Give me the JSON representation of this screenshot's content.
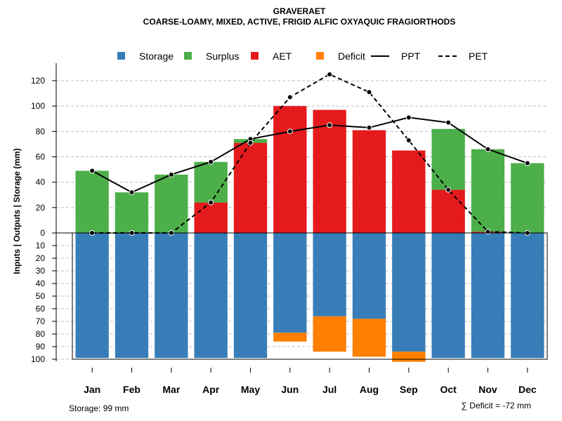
{
  "chart_data": {
    "type": "bar",
    "title": "GRAVERAET",
    "subtitle": "COARSE-LOAMY, MIXED, ACTIVE, FRIGID ALFIC OXYAQUIC FRAGIORTHODS",
    "ylabel": "Inputs | Outputs | Storage    (mm)",
    "categories": [
      "Jan",
      "Feb",
      "Mar",
      "Apr",
      "May",
      "Jun",
      "Jul",
      "Aug",
      "Sep",
      "Oct",
      "Nov",
      "Dec"
    ],
    "ylim_top": [
      0,
      130
    ],
    "yticks_top": [
      0,
      20,
      40,
      60,
      80,
      100,
      120
    ],
    "ylim_bottom": [
      0,
      100
    ],
    "yticks_bottom": [
      10,
      20,
      30,
      40,
      50,
      60,
      70,
      80,
      90,
      100
    ],
    "grid": true,
    "legend_position": "top",
    "legend": [
      {
        "label": "Storage",
        "kind": "square",
        "color": "#377EB8"
      },
      {
        "label": "Surplus",
        "kind": "square",
        "color": "#4DAF4A"
      },
      {
        "label": "AET",
        "kind": "square",
        "color": "#E41A1C"
      },
      {
        "label": "Deficit",
        "kind": "square",
        "color": "#FF7F00"
      },
      {
        "label": "PPT",
        "kind": "solid-line",
        "color": "#000000"
      },
      {
        "label": "PET",
        "kind": "dashed-line",
        "color": "#000000"
      }
    ],
    "series": [
      {
        "name": "AET",
        "color": "#E41A1C",
        "values": [
          0,
          0,
          0,
          24,
          71,
          100,
          97,
          81,
          65,
          34,
          1,
          0
        ]
      },
      {
        "name": "Surplus",
        "color": "#4DAF4A",
        "values": [
          49,
          32,
          46,
          32,
          3,
          0,
          0,
          0,
          0,
          48,
          65,
          55
        ]
      },
      {
        "name": "Storage",
        "color": "#377EB8",
        "values": [
          99,
          99,
          99,
          99,
          99,
          79,
          66,
          68,
          94,
          99,
          99,
          99
        ]
      },
      {
        "name": "Deficit",
        "color": "#FF7F00",
        "values": [
          0,
          0,
          0,
          0,
          0,
          7,
          28,
          30,
          8,
          0,
          0,
          0
        ]
      },
      {
        "name": "PPT",
        "color": "#000000",
        "style": "solid",
        "values": [
          49,
          32,
          46,
          56,
          74,
          80,
          85,
          83,
          91,
          87,
          66,
          55
        ]
      },
      {
        "name": "PET",
        "color": "#000000",
        "style": "dashed",
        "values": [
          0,
          0,
          0,
          24,
          71,
          107,
          125,
          111,
          73,
          34,
          1,
          0
        ]
      }
    ],
    "footnote_left": "Storage: 99 mm",
    "footnote_right": "∑ Deficit = -72 mm"
  }
}
